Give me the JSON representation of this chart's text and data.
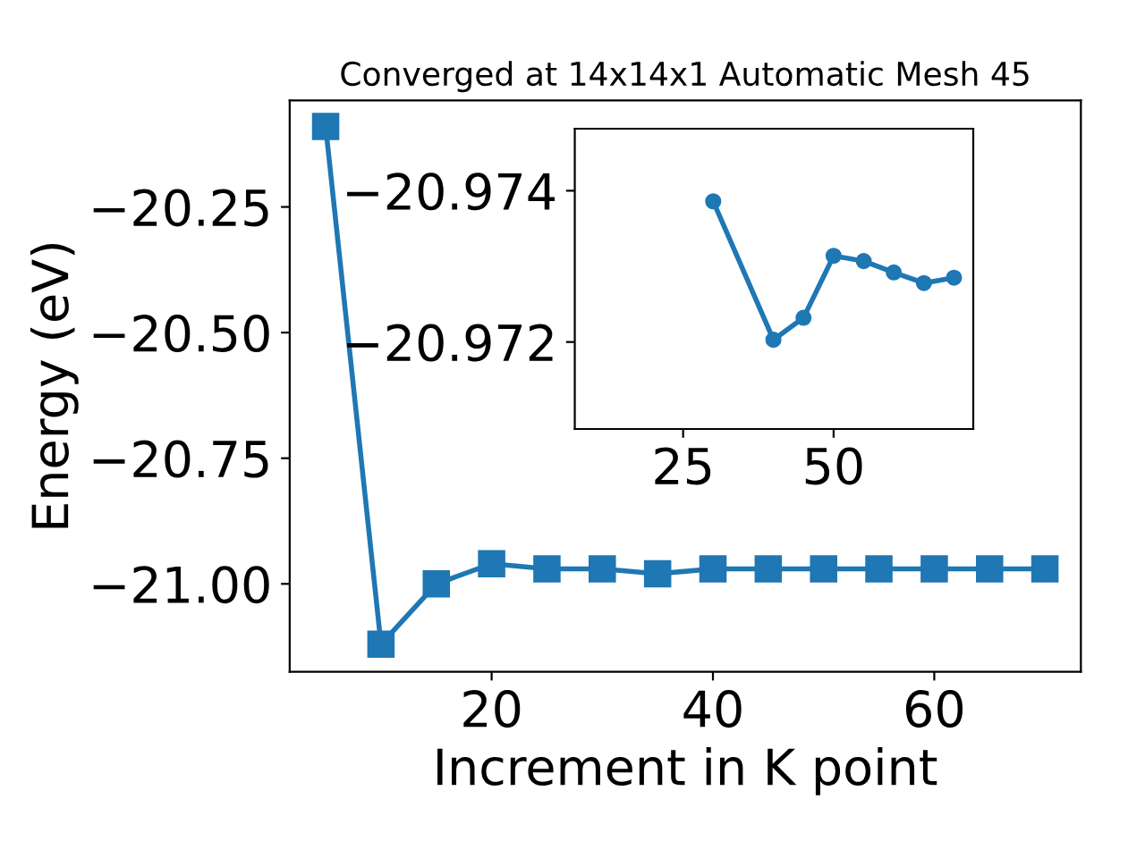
{
  "chart_data": [
    {
      "type": "line",
      "title": "Converged at 14x14x1 Automatic Mesh 45",
      "xlabel": "Increment in K point",
      "ylabel": "Energy (eV)",
      "x": [
        5,
        10,
        15,
        20,
        25,
        30,
        35,
        40,
        45,
        50,
        55,
        60,
        65,
        70
      ],
      "series": [
        {
          "color": "#1f77b4",
          "values": [
            -20.09,
            -21.12,
            -21.0,
            -20.96,
            -20.97,
            -20.97,
            -20.98,
            -20.97,
            -20.97,
            -20.97,
            -20.97,
            -20.97,
            -20.97,
            -20.97
          ]
        }
      ],
      "xlim": [
        1.75,
        73.25
      ],
      "ylim": [
        -21.175,
        -20.038
      ],
      "xticks": [
        20,
        40,
        60
      ],
      "yticks": [
        {
          "value": -21.0,
          "label": "−21.00"
        },
        -20.75,
        {
          "value": -20.5,
          "label": "−20.50"
        },
        -20.25
      ],
      "marker": "square",
      "line_style": "solid",
      "grid": false,
      "legend": false
    },
    {
      "type": "line",
      "x": [
        30,
        40,
        45,
        50,
        55,
        60,
        65,
        70
      ],
      "series": [
        {
          "color": "#1f77b4",
          "values": [
            -20.97386,
            -20.97203,
            -20.97232,
            -20.97314,
            -20.97307,
            -20.97292,
            -20.97278,
            -20.97285
          ]
        }
      ],
      "xlim": [
        7,
        73.2
      ],
      "ylim": [
        -20.97085,
        -20.97482
      ],
      "xticks": [
        25,
        50
      ],
      "yticks": [
        -20.974,
        -20.972
      ],
      "marker": "circle",
      "line_style": "solid",
      "grid": false,
      "legend": false
    }
  ]
}
